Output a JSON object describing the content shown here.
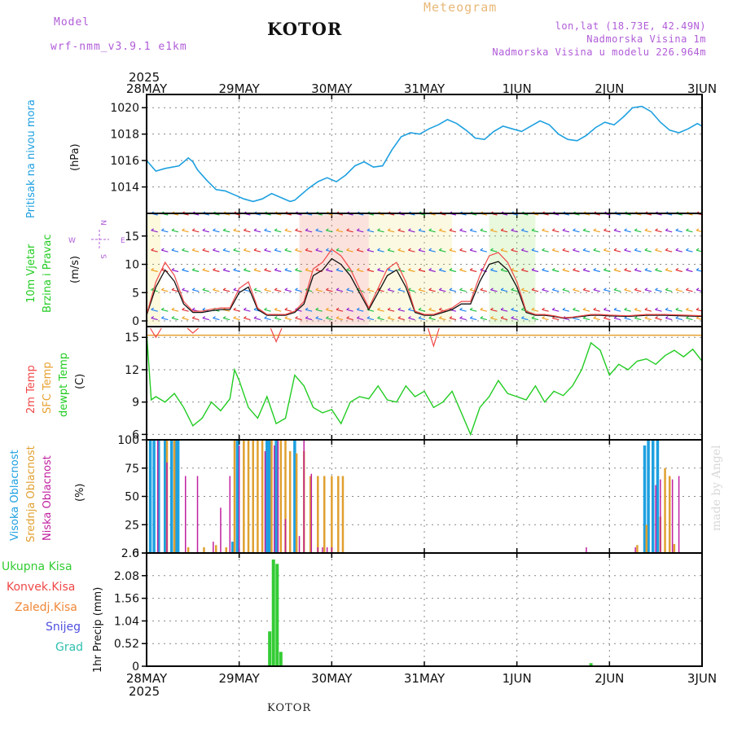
{
  "header": {
    "model_label": "Model",
    "model_name": "wrf-nmm_v3.9.1  e1km",
    "station": "KOTOR",
    "meteogram_label": "Meteogram",
    "lonlat": "lon,lat (18.73E, 42.49N)",
    "altitude": "Nadmorska Visina 1m",
    "model_altitude": "Nadmorska Visina u modelu 226.964m",
    "footer_station": "KOTOR",
    "watermark": "made by Angel"
  },
  "time_axis": {
    "year_top": "2025",
    "year_bottom": "2025",
    "ticks": [
      "28MAY",
      "29MAY",
      "30MAY",
      "31MAY",
      "1JUN",
      "2JUN",
      "3JUN"
    ]
  },
  "colors": {
    "pressure": "#1ea0e0",
    "temp2m": "#f04848",
    "sfc": "#e8a030",
    "dewpt": "#22cc22",
    "high_cloud": "#1ea0e0",
    "mid_cloud": "#e0a030",
    "low_cloud": "#c020a0",
    "precip_total": "#33cc33"
  },
  "panels": {
    "pressure": {
      "label": "Pritisak na nivou mora",
      "unit": "(hPa)"
    },
    "wind": {
      "label1": "10m Vjetar",
      "label2": "Brzina i Pravac",
      "unit": "(m/s)",
      "compass_n": "N",
      "compass_s": "S",
      "compass_w": "W",
      "compass_e": "E"
    },
    "temp": {
      "label1": "2m Temp",
      "label2": "SFC Temp",
      "label3": "dewpt Temp",
      "unit": "(C)"
    },
    "cloud": {
      "label1": "Visoka Oblacnost",
      "label2": "Srednja Oblacnost",
      "label3": "Niska Oblacnost",
      "unit": "(%)"
    },
    "precip": {
      "unit": "1hr Precip (mm)",
      "legend": [
        "Ukupna Kisa",
        "Konvek.Kisa",
        "Zaledj.Kisa",
        "Snijeg",
        "Grad"
      ],
      "legend_colors": [
        "#33cc33",
        "#f04848",
        "#f08838",
        "#5050e0",
        "#30c0b0"
      ]
    }
  },
  "chart_data": [
    {
      "type": "line",
      "name": "pressure",
      "ylim": [
        1012,
        1021
      ],
      "yticks": [
        1014,
        1016,
        1018,
        1020
      ],
      "x_days": [
        0,
        0.1,
        0.2,
        0.35,
        0.45,
        0.5,
        0.55,
        0.65,
        0.75,
        0.85,
        0.95,
        1.05,
        1.15,
        1.25,
        1.35,
        1.45,
        1.55,
        1.6,
        1.65,
        1.75,
        1.85,
        1.95,
        2.05,
        2.15,
        2.25,
        2.35,
        2.45,
        2.55,
        2.65,
        2.75,
        2.85,
        2.95,
        3.05,
        3.15,
        3.25,
        3.35,
        3.45,
        3.55,
        3.65,
        3.75,
        3.85,
        3.95,
        4.05,
        4.15,
        4.25,
        4.35,
        4.45,
        4.55,
        4.65,
        4.75,
        4.85,
        4.95,
        5.05,
        5.15,
        5.25,
        5.35,
        5.45,
        5.55,
        5.65,
        5.75,
        5.85,
        5.95,
        6.0
      ],
      "values": [
        1016,
        1015.2,
        1015.4,
        1015.6,
        1016.2,
        1015.9,
        1015.3,
        1014.5,
        1013.8,
        1013.7,
        1013.4,
        1013.1,
        1012.9,
        1013.1,
        1013.5,
        1013.2,
        1012.9,
        1013.0,
        1013.3,
        1013.9,
        1014.4,
        1014.7,
        1014.4,
        1014.9,
        1015.6,
        1015.9,
        1015.5,
        1015.6,
        1016.8,
        1017.8,
        1018.1,
        1018.0,
        1018.4,
        1018.7,
        1019.1,
        1018.8,
        1018.3,
        1017.7,
        1017.6,
        1018.2,
        1018.6,
        1018.4,
        1018.2,
        1018.6,
        1019.0,
        1018.7,
        1018.0,
        1017.6,
        1017.5,
        1017.9,
        1018.5,
        1018.9,
        1018.7,
        1019.3,
        1020.0,
        1020.1,
        1019.7,
        1018.9,
        1018.3,
        1018.1,
        1018.4,
        1018.8,
        1018.6
      ]
    },
    {
      "type": "line",
      "name": "wind",
      "ylim": [
        -1,
        19
      ],
      "yticks": [
        0,
        5,
        10,
        15
      ],
      "levels": [
        0.5,
        2,
        5.5,
        9,
        12.5,
        16,
        19
      ],
      "x_days": [
        0,
        0.1,
        0.2,
        0.3,
        0.4,
        0.5,
        0.6,
        0.7,
        0.8,
        0.9,
        1.0,
        1.1,
        1.2,
        1.3,
        1.4,
        1.5,
        1.6,
        1.7,
        1.8,
        1.9,
        2.0,
        2.1,
        2.2,
        2.3,
        2.4,
        2.5,
        2.6,
        2.7,
        2.8,
        2.9,
        3.0,
        3.1,
        3.2,
        3.3,
        3.4,
        3.5,
        3.6,
        3.7,
        3.8,
        3.9,
        4.0,
        4.1,
        4.2,
        4.3,
        4.4,
        4.5,
        4.6,
        4.7,
        4.8,
        4.9,
        5.0,
        5.2,
        5.4,
        5.6,
        5.8,
        6.0
      ],
      "values": [
        1,
        6,
        9,
        7,
        3,
        1.5,
        1.5,
        1.8,
        2,
        2,
        5,
        6,
        2,
        1,
        1,
        1,
        1.5,
        3,
        8,
        9,
        11,
        10,
        8,
        5,
        2,
        5,
        8,
        9,
        6,
        1.5,
        1,
        1,
        1.5,
        2,
        3,
        3,
        7,
        10,
        10.5,
        9,
        6,
        1.5,
        1,
        1,
        0.8,
        0.5,
        0.6,
        0.8,
        1,
        1,
        0.9,
        0.8,
        1,
        1,
        0.9,
        0.8
      ]
    },
    {
      "type": "line",
      "name": "temperature",
      "ylim": [
        5.5,
        16
      ],
      "yticks": [
        6,
        9,
        12,
        15
      ],
      "sfc_temp": 15.2,
      "x_days": [
        0,
        0.05,
        0.1,
        0.2,
        0.3,
        0.4,
        0.5,
        0.6,
        0.7,
        0.8,
        0.9,
        0.95,
        1.0,
        1.1,
        1.2,
        1.3,
        1.4,
        1.5,
        1.6,
        1.7,
        1.8,
        1.9,
        2.0,
        2.1,
        2.2,
        2.3,
        2.4,
        2.5,
        2.6,
        2.7,
        2.8,
        2.9,
        3.0,
        3.1,
        3.2,
        3.3,
        3.4,
        3.5,
        3.6,
        3.7,
        3.8,
        3.9,
        4.0,
        4.1,
        4.2,
        4.3,
        4.4,
        4.5,
        4.6,
        4.7,
        4.8,
        4.9,
        5.0,
        5.1,
        5.2,
        5.3,
        5.4,
        5.5,
        5.6,
        5.7,
        5.8,
        5.9,
        6.0
      ],
      "values": [
        15.5,
        9.2,
        9.5,
        9.0,
        9.8,
        8.5,
        6.8,
        7.5,
        9.0,
        8.2,
        9.3,
        12.0,
        11.0,
        8.5,
        7.5,
        9.5,
        7.0,
        7.5,
        11.5,
        10.5,
        8.5,
        8.0,
        8.3,
        7.0,
        9.0,
        9.5,
        9.3,
        10.5,
        9.2,
        9.0,
        10.5,
        9.5,
        10.0,
        8.5,
        9.0,
        10.0,
        8.0,
        6.0,
        8.5,
        9.5,
        11.0,
        9.8,
        9.5,
        9.2,
        10.5,
        9.0,
        10.0,
        9.6,
        10.5,
        12.0,
        14.5,
        13.8,
        11.5,
        12.5,
        12.0,
        12.8,
        13.0,
        12.5,
        13.3,
        13.8,
        13.2,
        13.9,
        12.8
      ]
    },
    {
      "type": "bar",
      "name": "cloud",
      "ylim": [
        0,
        100
      ],
      "yticks": [
        0,
        25,
        50,
        75,
        100
      ],
      "high": {
        "x_days": [
          0.04,
          0.08,
          0.13,
          0.2,
          0.27,
          0.31,
          0.34,
          0.93,
          0.98,
          1.3,
          1.33,
          1.4,
          1.6,
          5.38,
          5.42,
          5.47,
          5.52
        ],
        "values": [
          100,
          100,
          100,
          100,
          100,
          100,
          100,
          10,
          100,
          100,
          100,
          100,
          100,
          95,
          100,
          100,
          100
        ]
      },
      "mid": {
        "x_days": [
          0.22,
          0.3,
          0.45,
          0.62,
          0.75,
          0.86,
          0.95,
          1.05,
          1.1,
          1.15,
          1.2,
          1.25,
          1.35,
          1.45,
          1.5,
          1.55,
          1.62,
          1.7,
          1.77,
          1.85,
          1.92,
          2.0,
          2.07,
          2.12,
          5.3,
          5.4,
          5.55,
          5.6,
          5.65,
          5.7
        ],
        "values": [
          100,
          100,
          5,
          5,
          7,
          5,
          100,
          100,
          100,
          100,
          100,
          100,
          100,
          100,
          100,
          90,
          88,
          90,
          68,
          68,
          68,
          68,
          68,
          68,
          7,
          25,
          32,
          75,
          68,
          8
        ]
      },
      "low": {
        "x_days": [
          0.12,
          0.22,
          0.42,
          0.55,
          0.72,
          0.8,
          0.9,
          1.0,
          1.28,
          1.38,
          1.42,
          1.5,
          1.65,
          1.7,
          1.78,
          1.85,
          1.9,
          1.95,
          2.0,
          4.75,
          5.28,
          5.5,
          5.55,
          5.68,
          5.75
        ],
        "values": [
          100,
          80,
          68,
          68,
          10,
          40,
          68,
          95,
          90,
          95,
          100,
          30,
          15,
          100,
          70,
          5,
          5,
          5,
          5,
          5,
          5,
          60,
          65,
          65,
          68
        ]
      }
    },
    {
      "type": "bar",
      "name": "precipitation",
      "ylim": [
        0,
        2.6
      ],
      "yticks": [
        0,
        0.52,
        1.04,
        1.56,
        2.08,
        2.6
      ],
      "x_days": [
        1.33,
        1.37,
        1.41,
        1.45,
        4.8
      ],
      "values": [
        0.8,
        2.45,
        2.35,
        0.33,
        0.07
      ]
    }
  ]
}
